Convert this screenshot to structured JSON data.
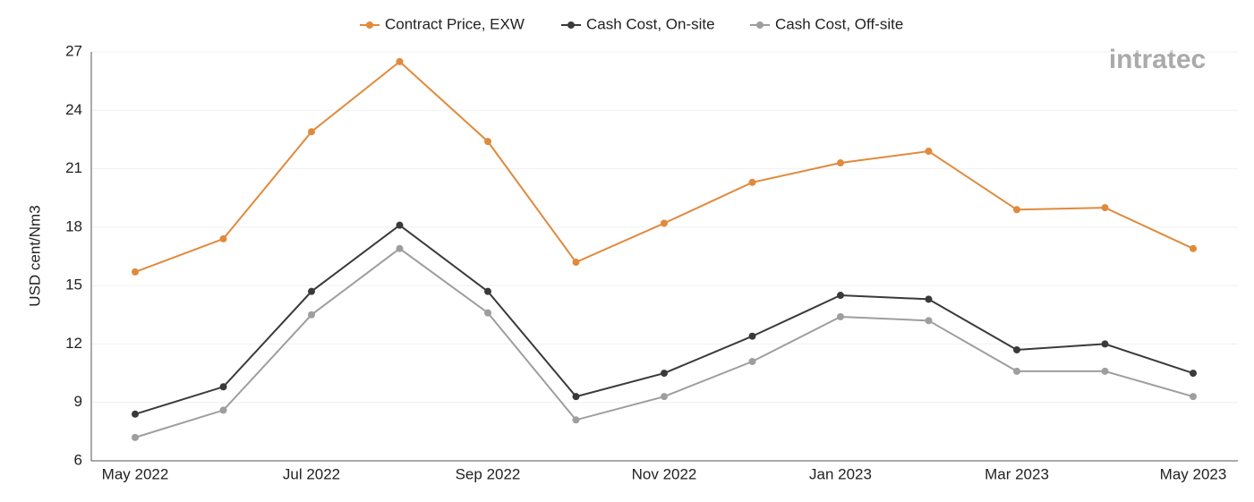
{
  "chart_data": {
    "type": "line",
    "logo": "intratec",
    "y_label": "USD cent/Nm3",
    "categories": [
      "May 2022",
      null,
      "Jul 2022",
      null,
      "Sep 2022",
      null,
      "Nov 2022",
      null,
      "Jan 2023",
      null,
      "Mar 2023",
      null,
      "May 2023"
    ],
    "series": [
      {
        "name": "Contract Price, EXW",
        "color": "#e08a3c",
        "values": [
          15.7,
          17.4,
          22.9,
          26.5,
          22.4,
          16.2,
          18.2,
          20.3,
          21.3,
          21.9,
          18.9,
          19.0,
          16.9
        ]
      },
      {
        "name": "Cash Cost, On-site",
        "color": "#3a3a3a",
        "values": [
          8.4,
          9.8,
          14.7,
          18.1,
          14.7,
          9.3,
          10.5,
          12.4,
          14.5,
          14.3,
          11.7,
          12.0,
          10.5
        ]
      },
      {
        "name": "Cash Cost, Off-site",
        "color": "#9e9e9e",
        "values": [
          7.2,
          8.6,
          13.5,
          16.9,
          13.6,
          8.1,
          9.3,
          11.1,
          13.4,
          13.2,
          10.6,
          10.6,
          9.3
        ]
      }
    ],
    "ylim": [
      6,
      27
    ],
    "yticks": [
      6,
      9,
      12,
      15,
      18,
      21,
      24,
      27
    ],
    "grid": true,
    "legend": "top"
  }
}
